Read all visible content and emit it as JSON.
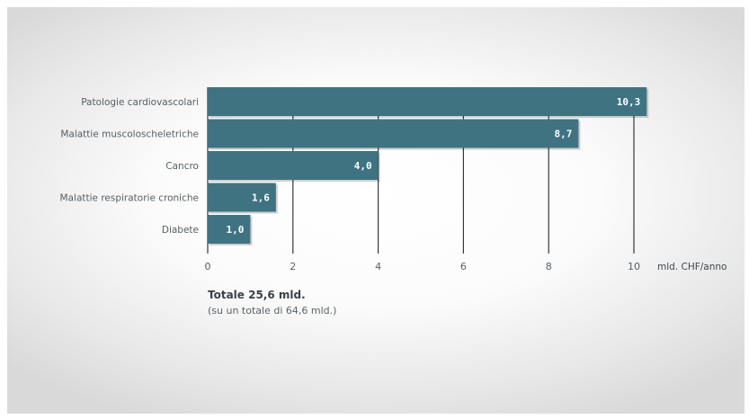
{
  "chart_data": {
    "type": "bar",
    "orientation": "horizontal",
    "categories": [
      "Patologie cardiovascolari",
      "Malattie muscoloscheletriche",
      "Cancro",
      "Malattie respiratorie croniche",
      "Diabete"
    ],
    "values": [
      10.3,
      8.7,
      4.0,
      1.6,
      1.0
    ],
    "value_labels": [
      "10,3",
      "8,7",
      "4,0",
      "1,6",
      "1,0"
    ],
    "xlabel": "mld. CHF/anno",
    "ylabel": "",
    "xlim": [
      0,
      10
    ],
    "xticks": [
      0,
      2,
      4,
      6,
      8,
      10
    ],
    "xtick_labels": [
      "0",
      "2",
      "4",
      "6",
      "8",
      "10"
    ],
    "grid": "vertical",
    "bar_color": "#3f7381",
    "gridline_color": "#2f3a40"
  },
  "summary": {
    "total": "Totale 25,6 mld.",
    "subtotal": "(su un totale di 64,6 mld.)"
  }
}
